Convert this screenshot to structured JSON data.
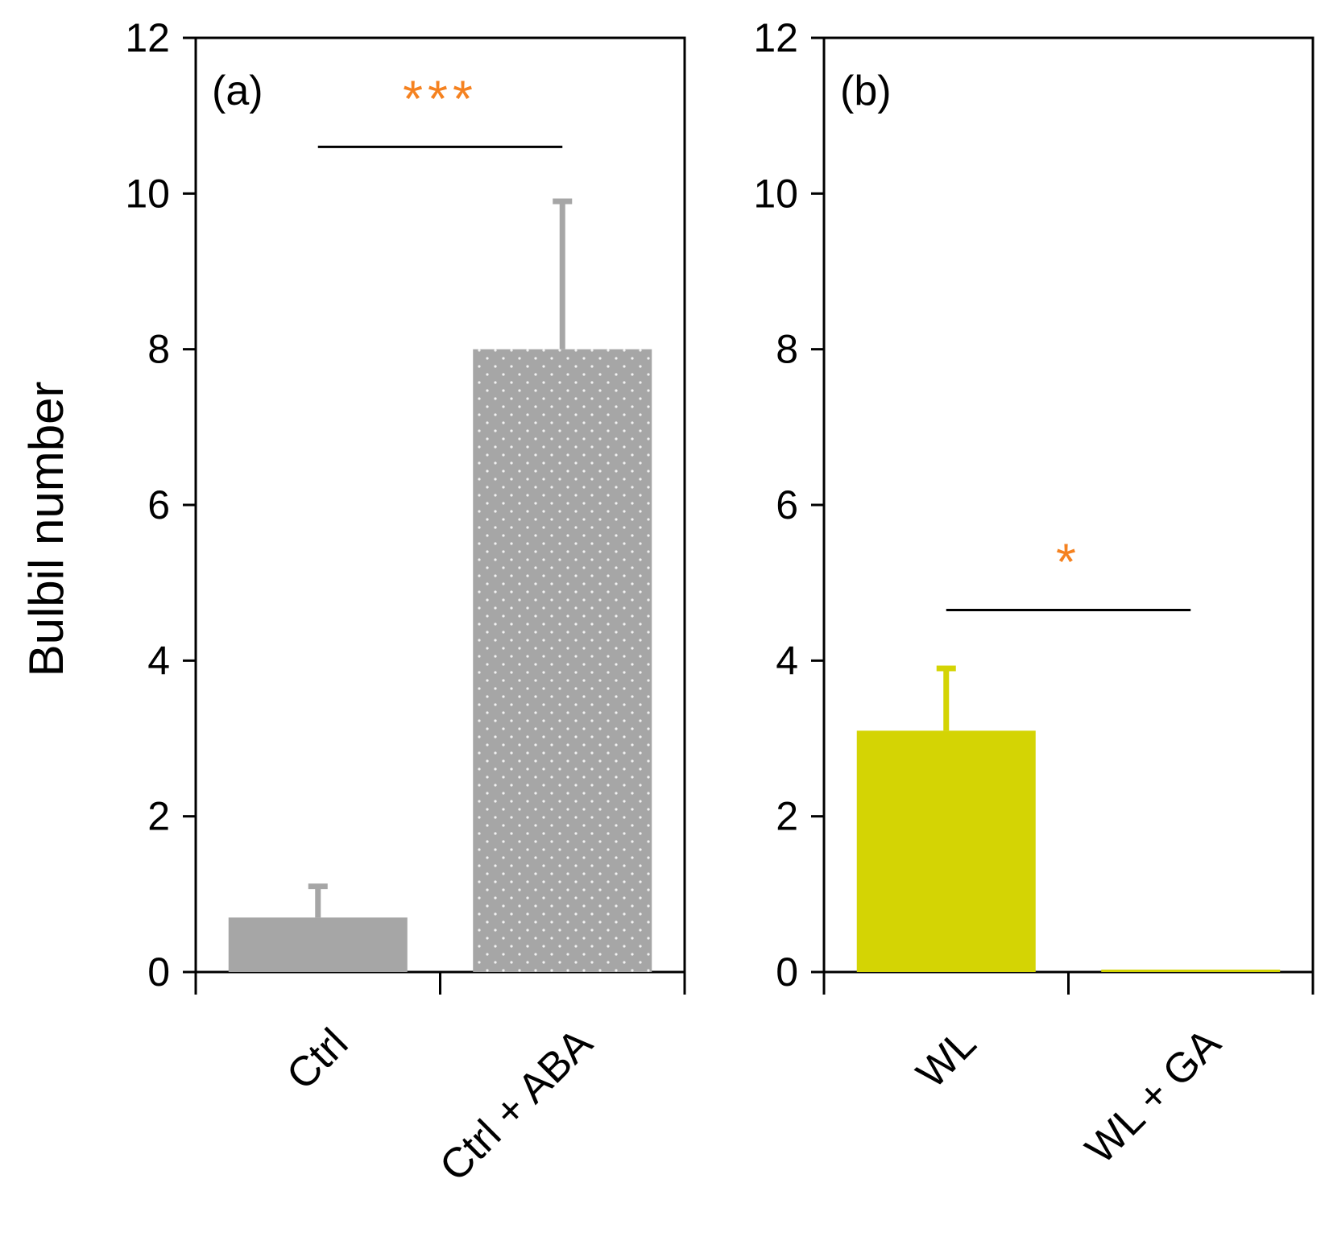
{
  "chart_data": [
    {
      "type": "bar",
      "panel_label": "(a)",
      "ylabel": "Bulbil number",
      "ylim": [
        0,
        12
      ],
      "yticks": [
        "0",
        "2",
        "4",
        "6",
        "8",
        "10",
        "12"
      ],
      "categories": [
        "Ctrl",
        "Ctrl + ABA"
      ],
      "values": [
        0.7,
        8.0
      ],
      "errors": [
        0.4,
        1.9
      ],
      "colors": [
        "#a6a6a6",
        "#a6a6a6"
      ],
      "patterns": [
        "solid",
        "dotted"
      ],
      "significance": {
        "label": "***",
        "between": [
          0,
          1
        ],
        "y": 10.6,
        "color": "#f58220"
      }
    },
    {
      "type": "bar",
      "panel_label": "(b)",
      "ylabel": "",
      "ylim": [
        0,
        12
      ],
      "yticks": [
        "0",
        "2",
        "4",
        "6",
        "8",
        "10",
        "12"
      ],
      "categories": [
        "WL",
        "WL + GA"
      ],
      "values": [
        3.1,
        0.0
      ],
      "errors": [
        0.8,
        0.0
      ],
      "colors": [
        "#d4d404",
        "#d4d404"
      ],
      "patterns": [
        "solid",
        "solid"
      ],
      "significance": {
        "label": "*",
        "between": [
          0,
          1
        ],
        "y": 4.65,
        "color": "#f58220"
      }
    }
  ]
}
